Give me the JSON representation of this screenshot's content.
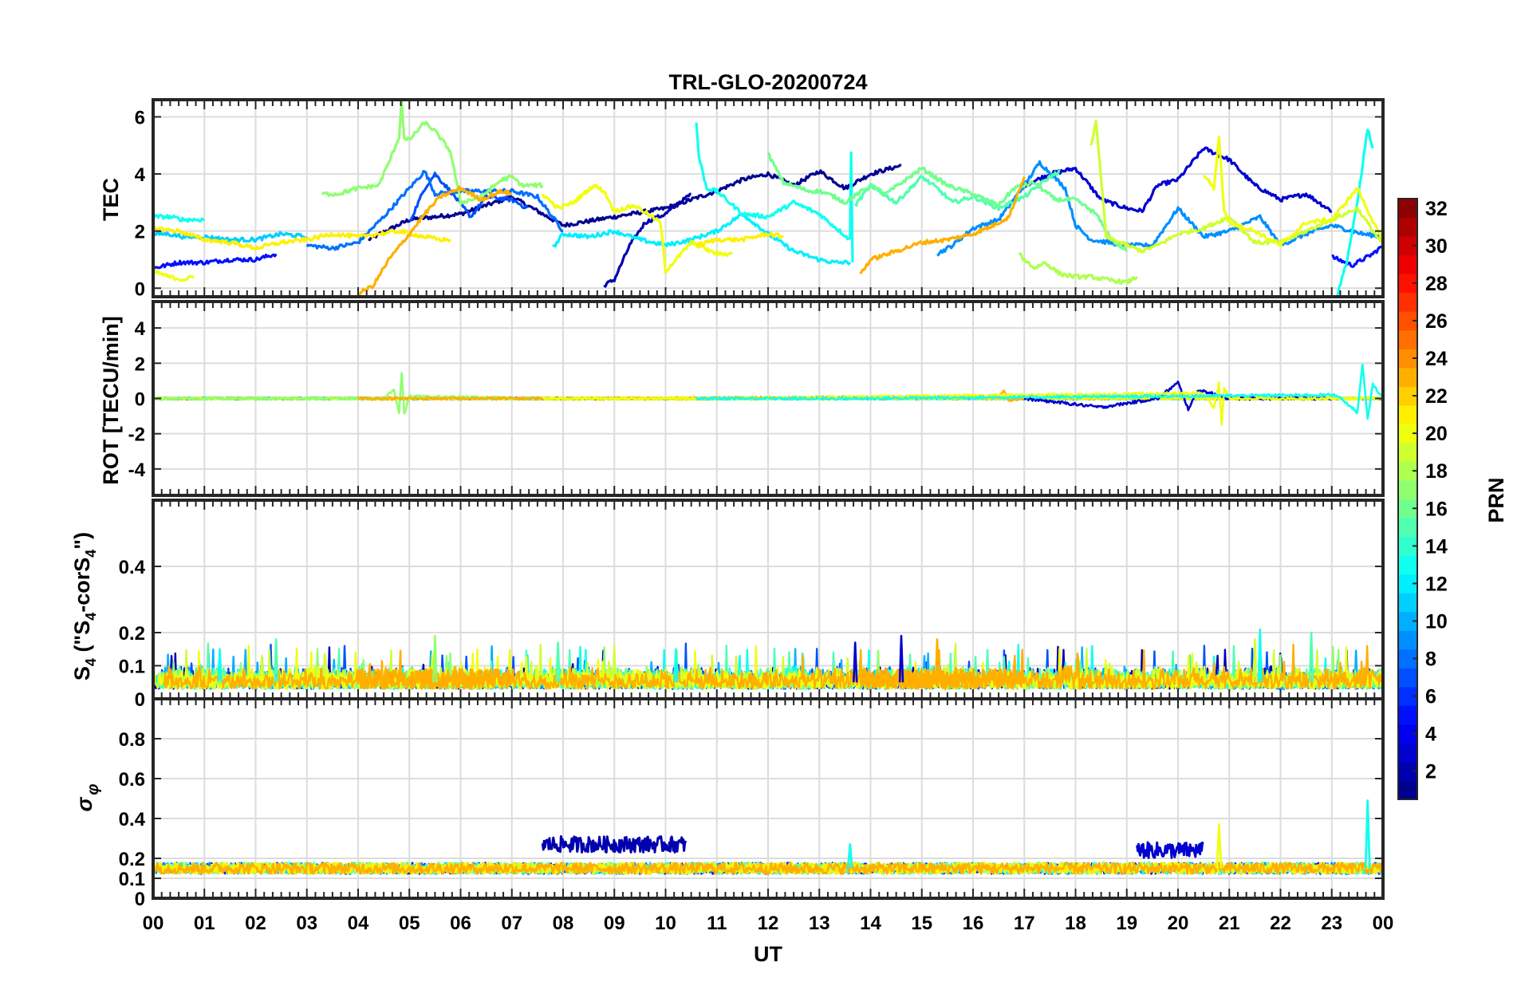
{
  "chart_data": {
    "type": "line",
    "title": "TRL-GLO-20200724",
    "xlabel": "UT",
    "x_tick_labels": [
      "00",
      "01",
      "02",
      "03",
      "04",
      "05",
      "06",
      "07",
      "08",
      "09",
      "10",
      "11",
      "12",
      "13",
      "14",
      "15",
      "16",
      "17",
      "18",
      "19",
      "20",
      "21",
      "22",
      "23",
      "00"
    ],
    "xlim": [
      0,
      24
    ],
    "grid": true,
    "panels": [
      {
        "name": "TEC",
        "ylabel": "TEC",
        "ylim": [
          -0.3,
          6.6
        ],
        "yticks": [
          0,
          2,
          4,
          6
        ],
        "ytick_labels": [
          "0",
          "2",
          "4",
          "6"
        ],
        "series": [
          {
            "name": "PRN 1",
            "prn": 1,
            "x": [
              4.2,
              5.0,
              6.0,
              7.0,
              8.0,
              9.0,
              10.0,
              11.0,
              11.5,
              12.0,
              12.5,
              13.0,
              13.5,
              14.0,
              14.6
            ],
            "y": [
              1.7,
              2.4,
              2.6,
              3.2,
              2.2,
              2.5,
              2.8,
              3.4,
              3.8,
              4.0,
              3.6,
              4.1,
              3.5,
              4.0,
              4.3
            ]
          },
          {
            "name": "PRN 2",
            "prn": 2,
            "x": [
              8.8,
              9.0,
              9.3,
              9.6,
              10.0,
              10.5
            ],
            "y": [
              0.1,
              0.3,
              1.5,
              2.3,
              2.6,
              3.3
            ]
          },
          {
            "name": "PRN 3",
            "prn": 3,
            "x": [
              17.0,
              17.5,
              18.0,
              18.5,
              19.0,
              19.3,
              19.6,
              20.0,
              20.5,
              21.0,
              21.5,
              22.0,
              22.5,
              23.0
            ],
            "y": [
              3.6,
              4.0,
              4.2,
              3.1,
              2.8,
              2.7,
              3.6,
              3.8,
              4.9,
              4.5,
              3.6,
              3.1,
              3.3,
              2.7
            ]
          },
          {
            "name": "PRN 5",
            "prn": 5,
            "x": [
              0.0,
              0.5,
              1.0,
              1.5,
              2.0,
              2.4,
              23.0,
              23.4,
              23.8,
              24.0
            ],
            "y": [
              0.7,
              0.9,
              0.9,
              1.0,
              1.0,
              1.2,
              1.1,
              0.8,
              1.2,
              1.5
            ]
          },
          {
            "name": "PRN 7",
            "prn": 7,
            "x": [
              5.0,
              5.3,
              5.5,
              5.8,
              6.2,
              6.5,
              7.0,
              7.3
            ],
            "y": [
              2.3,
              3.5,
              4.0,
              3.4,
              2.5,
              3.2,
              3.1,
              2.8
            ]
          },
          {
            "name": "PRN 8",
            "prn": 8,
            "x": [
              3.0,
              3.5,
              4.0,
              4.5,
              5.0,
              5.3,
              5.5,
              6.0,
              7.0,
              7.5,
              8.0
            ],
            "y": [
              1.5,
              1.4,
              1.6,
              2.5,
              3.5,
              4.1,
              3.3,
              3.4,
              3.4,
              3.2,
              2.0
            ]
          },
          {
            "name": "PRN 9",
            "prn": 9,
            "x": [
              15.3,
              15.6,
              16.0,
              16.5,
              17.0,
              17.3,
              17.8,
              18.0,
              18.3,
              19.0,
              19.5,
              20.0,
              20.5,
              21.0,
              21.6,
              22.0,
              22.5,
              23.0,
              23.6,
              24.0
            ],
            "y": [
              1.2,
              1.5,
              2.1,
              2.4,
              3.6,
              4.4,
              3.5,
              2.2,
              1.7,
              1.5,
              1.5,
              2.8,
              1.8,
              2.0,
              2.5,
              1.5,
              1.9,
              2.2,
              1.9,
              1.8
            ]
          },
          {
            "name": "PRN 11",
            "prn": 11,
            "x": [
              0.0,
              0.3,
              0.6,
              1.0,
              1.5,
              2.0,
              2.5,
              3.0
            ],
            "y": [
              1.9,
              1.9,
              1.8,
              1.8,
              1.7,
              1.7,
              1.9,
              1.8
            ]
          },
          {
            "name": "PRN 12",
            "prn": 12,
            "x": [
              7.8,
              8.0,
              8.5,
              9.0,
              9.5,
              10.0,
              10.5,
              11.0,
              11.5,
              12.0,
              12.5,
              13.0,
              13.3,
              13.6
            ],
            "y": [
              1.4,
              1.9,
              1.8,
              2.0,
              1.7,
              1.5,
              1.7,
              2.0,
              2.6,
              1.9,
              1.3,
              1.0,
              0.9,
              0.9
            ]
          },
          {
            "name": "PRN 13",
            "prn": 13,
            "x": [
              0.0,
              0.3,
              0.6,
              1.0,
              10.6,
              10.65,
              10.8,
              11.0,
              11.5,
              12.0,
              12.5,
              13.0,
              13.6,
              13.62,
              13.65,
              23.1,
              23.3,
              23.5,
              23.7,
              23.8
            ],
            "y": [
              2.5,
              2.5,
              2.4,
              2.4,
              5.8,
              4.6,
              3.5,
              3.4,
              2.6,
              2.5,
              3.0,
              2.6,
              1.7,
              4.8,
              0.9,
              -0.3,
              1.0,
              3.0,
              5.6,
              4.9
            ]
          },
          {
            "name": "PRN 15",
            "prn": 15,
            "x": [
              13.7,
              14.0,
              14.5,
              15.0,
              15.3,
              15.6,
              16.0,
              16.5,
              17.0,
              17.5,
              17.7
            ],
            "y": [
              2.9,
              3.6,
              3.0,
              3.9,
              3.5,
              3.0,
              3.2,
              2.8,
              3.2,
              3.9,
              4.1
            ]
          },
          {
            "name": "PRN 16",
            "prn": 16,
            "x": [
              12.0,
              12.3,
              12.8,
              13.0,
              13.3,
              13.5,
              14.0,
              14.3,
              15.0,
              15.5,
              16.0,
              16.5,
              16.8,
              17.2,
              17.6,
              18.0,
              18.4,
              18.7,
              19.0
            ],
            "y": [
              4.7,
              3.7,
              3.4,
              3.4,
              3.2,
              3.0,
              3.6,
              3.3,
              4.2,
              3.6,
              3.3,
              2.9,
              3.5,
              3.7,
              3.1,
              3.1,
              2.6,
              1.7,
              1.3
            ]
          },
          {
            "name": "PRN 17",
            "prn": 17,
            "x": [
              3.3,
              3.6,
              4.0,
              4.4,
              4.6,
              4.8,
              4.85,
              4.9,
              5.0,
              5.3,
              5.5,
              5.8,
              6.0,
              6.4,
              6.8,
              7.0,
              7.2,
              7.6
            ],
            "y": [
              3.3,
              3.3,
              3.5,
              3.6,
              4.4,
              5.3,
              6.6,
              5.2,
              5.2,
              5.8,
              5.5,
              4.8,
              3.0,
              3.2,
              3.8,
              3.9,
              3.6,
              3.6
            ]
          },
          {
            "name": "PRN 18",
            "prn": 18,
            "x": [
              16.9,
              17.0,
              17.2,
              17.4,
              17.7,
              18.0,
              18.3,
              18.6,
              19.0,
              19.2
            ],
            "y": [
              1.2,
              1.0,
              0.7,
              0.9,
              0.5,
              0.4,
              0.4,
              0.3,
              0.2,
              0.4
            ]
          },
          {
            "name": "PRN 19",
            "prn": 19,
            "x": [
              18.3,
              18.4,
              18.6,
              19.0,
              19.3,
              19.6,
              20.0,
              20.5,
              21.0,
              21.5,
              22.0,
              22.5,
              23.0,
              23.5,
              24.0
            ],
            "y": [
              5.0,
              5.8,
              1.8,
              1.5,
              1.3,
              1.5,
              1.9,
              2.1,
              2.5,
              1.6,
              1.6,
              2.0,
              2.4,
              2.8,
              1.5
            ]
          },
          {
            "name": "PRN 20",
            "prn": 20,
            "x": [
              0.0,
              0.3,
              0.6,
              0.8,
              7.6,
              7.9,
              8.2,
              8.6,
              8.8,
              9.0,
              9.4,
              9.9,
              10.0,
              10.5,
              11.0,
              11.3,
              20.5,
              20.7,
              20.8,
              20.9,
              21.0,
              21.5,
              22.0,
              22.5,
              23.0,
              23.5,
              24.0
            ],
            "y": [
              0.6,
              0.4,
              0.3,
              0.4,
              3.3,
              2.8,
              3.0,
              3.6,
              3.4,
              2.7,
              2.9,
              2.3,
              0.6,
              1.6,
              1.2,
              1.2,
              4.0,
              3.5,
              5.3,
              2.7,
              2.3,
              2.0,
              1.5,
              2.3,
              2.4,
              3.5,
              1.6
            ]
          },
          {
            "name": "PRN 21",
            "prn": 21,
            "x": [
              0.0,
              0.5,
              1.0,
              1.5,
              2.0,
              2.5,
              3.0,
              3.5,
              4.0,
              4.4,
              4.8,
              5.3,
              5.6,
              5.8,
              10.6,
              11.0,
              11.5,
              12.0,
              12.3
            ],
            "y": [
              2.1,
              2.0,
              1.7,
              1.6,
              1.4,
              1.6,
              1.7,
              1.9,
              1.8,
              1.9,
              2.0,
              1.8,
              1.7,
              1.7,
              1.5,
              1.7,
              1.7,
              1.9,
              1.8
            ]
          },
          {
            "name": "PRN 23",
            "prn": 23,
            "x": [
              4.0,
              4.3,
              4.6,
              5.0,
              5.3,
              5.6,
              6.0,
              6.4,
              6.8,
              7.0,
              13.8,
              14.0,
              14.5,
              15.0,
              15.5,
              16.0,
              16.4,
              16.7,
              17.0
            ],
            "y": [
              -0.2,
              0.1,
              1.0,
              1.9,
              2.6,
              3.2,
              3.5,
              3.1,
              3.4,
              3.3,
              0.5,
              1.0,
              1.3,
              1.6,
              1.7,
              1.9,
              2.2,
              2.5,
              3.9
            ]
          }
        ]
      },
      {
        "name": "ROT",
        "ylabel": "ROT [TECU/min]",
        "ylim": [
          -5.5,
          5.5
        ],
        "yticks": [
          -4,
          -2,
          0,
          2,
          4
        ],
        "ytick_labels": [
          "-4",
          "-2",
          "0",
          "2",
          "4"
        ],
        "series": [
          {
            "name": "PRN 17",
            "prn": 17,
            "x": [
              0.0,
              4.5,
              4.7,
              4.8,
              4.85,
              4.9,
              5.0,
              7.6
            ],
            "y": [
              0.0,
              0.0,
              0.5,
              -0.8,
              1.5,
              -0.9,
              0.1,
              0.0
            ]
          },
          {
            "name": "PRN 23",
            "prn": 23,
            "x": [
              4.0,
              10.0,
              16.5,
              16.6,
              16.7,
              17.0
            ],
            "y": [
              0.0,
              0.0,
              0.1,
              0.5,
              -0.1,
              0.0
            ]
          },
          {
            "name": "PRN 3",
            "prn": 3,
            "x": [
              17.0,
              18.5,
              19.6,
              20.0,
              20.2,
              20.4,
              21.0,
              23.0
            ],
            "y": [
              0.0,
              -0.5,
              0.0,
              0.9,
              -0.6,
              0.5,
              0.0,
              0.0
            ]
          },
          {
            "name": "PRN 20",
            "prn": 20,
            "x": [
              7.6,
              11.3,
              20.5,
              20.7,
              20.8,
              20.85,
              20.9,
              21.0,
              24.0
            ],
            "y": [
              0.0,
              0.0,
              0.3,
              -0.5,
              0.9,
              -1.5,
              0.6,
              0.0,
              0.0
            ]
          },
          {
            "name": "PRN 13",
            "prn": 13,
            "x": [
              10.6,
              13.6,
              23.1,
              23.5,
              23.6,
              23.7,
              23.8,
              24.0
            ],
            "y": [
              0.0,
              0.0,
              0.2,
              -0.8,
              1.9,
              -1.2,
              0.8,
              0.0
            ]
          }
        ]
      },
      {
        "name": "S4",
        "ylabel": "S4 (\"S4-corS4\")",
        "ylabel_main": "S",
        "ylabel_sub1": "4",
        "ylabel_mid": " (\"S",
        "ylabel_sub2": "4",
        "ylabel_mid2": "-corS",
        "ylabel_sub3": "4",
        "ylabel_end": "\")",
        "ylim": [
          0,
          0.6
        ],
        "yticks": [
          0,
          0.1,
          0.2,
          0.4
        ],
        "ytick_labels": [
          "0",
          "0.1",
          "0.2",
          "0.4"
        ],
        "baseline": 0.05,
        "noise_amplitude": 0.05,
        "peaks": [
          {
            "prn": 13,
            "x": 1.3,
            "y": 0.15
          },
          {
            "prn": 15,
            "x": 2.4,
            "y": 0.18
          },
          {
            "prn": 17,
            "x": 5.5,
            "y": 0.19
          },
          {
            "prn": 13,
            "x": 10.2,
            "y": 0.15
          },
          {
            "prn": 3,
            "x": 13.7,
            "y": 0.17
          },
          {
            "prn": 3,
            "x": 14.6,
            "y": 0.19
          },
          {
            "prn": 23,
            "x": 15.3,
            "y": 0.18
          },
          {
            "prn": 15,
            "x": 7.9,
            "y": 0.17
          },
          {
            "prn": 19,
            "x": 21.5,
            "y": 0.18
          },
          {
            "prn": 13,
            "x": 21.6,
            "y": 0.21
          },
          {
            "prn": 15,
            "x": 22.6,
            "y": 0.2
          }
        ]
      },
      {
        "name": "sigma_phi",
        "ylabel": "σ φ",
        "ylabel_main": "σ",
        "ylabel_sub": "φ",
        "ylim": [
          0,
          1.0
        ],
        "yticks": [
          0,
          0.1,
          0.2,
          0.4,
          0.6,
          0.8
        ],
        "ytick_labels": [
          "0",
          "0.1",
          "0.2",
          "0.4",
          "0.6",
          "0.8"
        ],
        "baseline": 0.15,
        "noise_amplitude": 0.04,
        "bumps": [
          {
            "prn": 2,
            "x_start": 7.6,
            "x_end": 10.4,
            "y": 0.27
          },
          {
            "prn": 3,
            "x_start": 19.2,
            "x_end": 20.5,
            "y": 0.24
          }
        ],
        "spikes": [
          {
            "prn": 20,
            "x": 20.8,
            "y": 0.37
          },
          {
            "prn": 13,
            "x": 23.7,
            "y": 0.49
          },
          {
            "prn": 13,
            "x": 13.6,
            "y": 0.27
          }
        ]
      }
    ],
    "colorbar": {
      "label": "PRN",
      "range": [
        1,
        32
      ],
      "ticks": [
        2,
        4,
        6,
        8,
        10,
        12,
        14,
        16,
        18,
        20,
        22,
        24,
        26,
        28,
        30,
        32
      ],
      "tick_labels": [
        "2",
        "4",
        "6",
        "8",
        "10",
        "12",
        "14",
        "16",
        "18",
        "20",
        "22",
        "24",
        "26",
        "28",
        "30",
        "32"
      ],
      "colormap": "jet"
    }
  }
}
